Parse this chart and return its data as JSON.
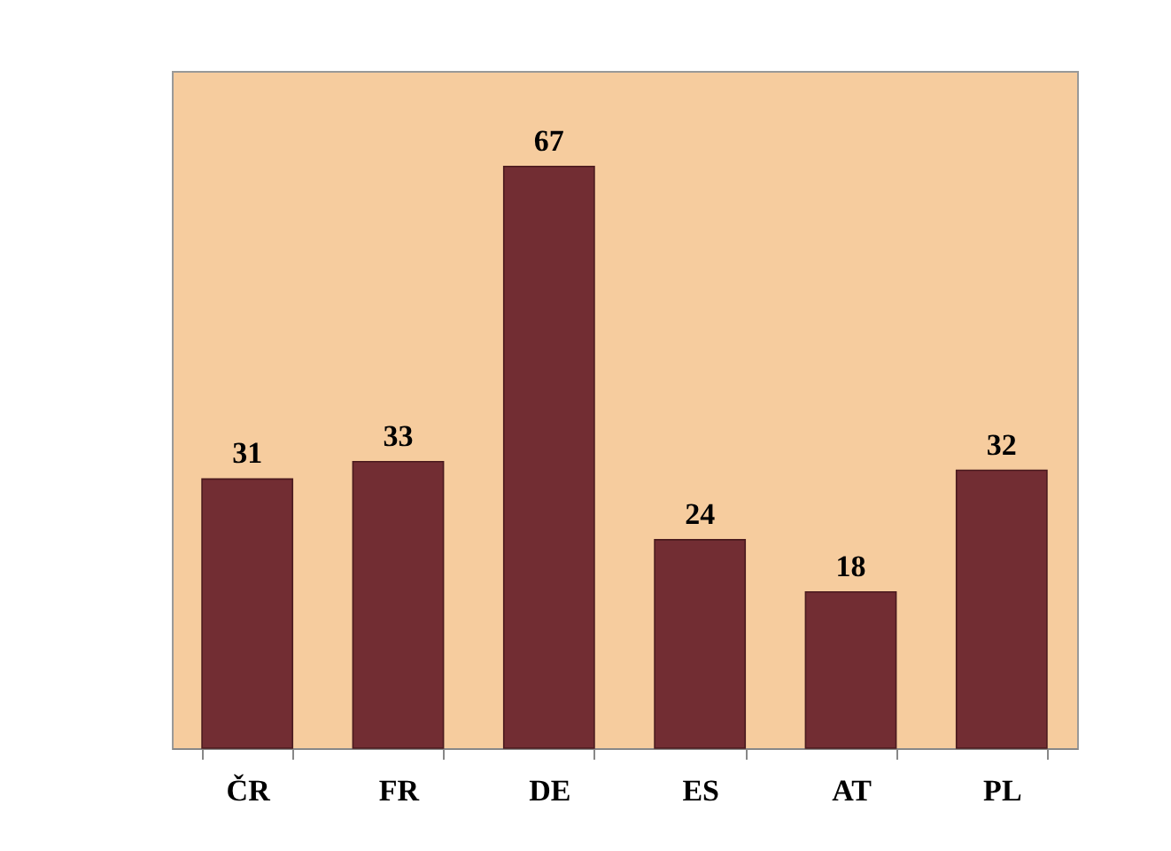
{
  "chart_data": {
    "type": "bar",
    "categories": [
      "ČR",
      "FR",
      "DE",
      "ES",
      "AT",
      "PL"
    ],
    "values": [
      31,
      33,
      67,
      24,
      18,
      32
    ],
    "color": "#722d33",
    "ylim": [
      0,
      78
    ],
    "tick_labels": "x",
    "data_labels": true
  }
}
